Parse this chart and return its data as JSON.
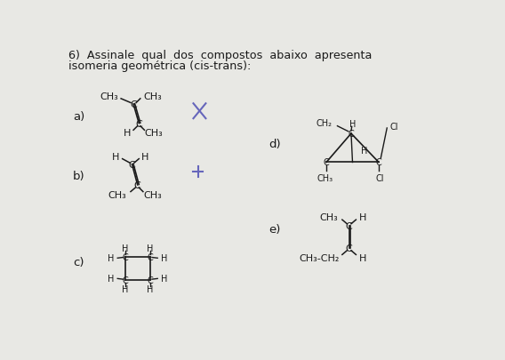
{
  "title_line1": "6)  Assinale  qual  dos  compostos  abaixo  apresenta",
  "title_line2": "isomeria geométrica (cis-trans):",
  "bg_color": "#e8e8e4",
  "text_color": "#1a1a1a",
  "label_a": "a)",
  "label_b": "b)",
  "label_c": "c)",
  "label_d": "d)",
  "label_e": "e)"
}
